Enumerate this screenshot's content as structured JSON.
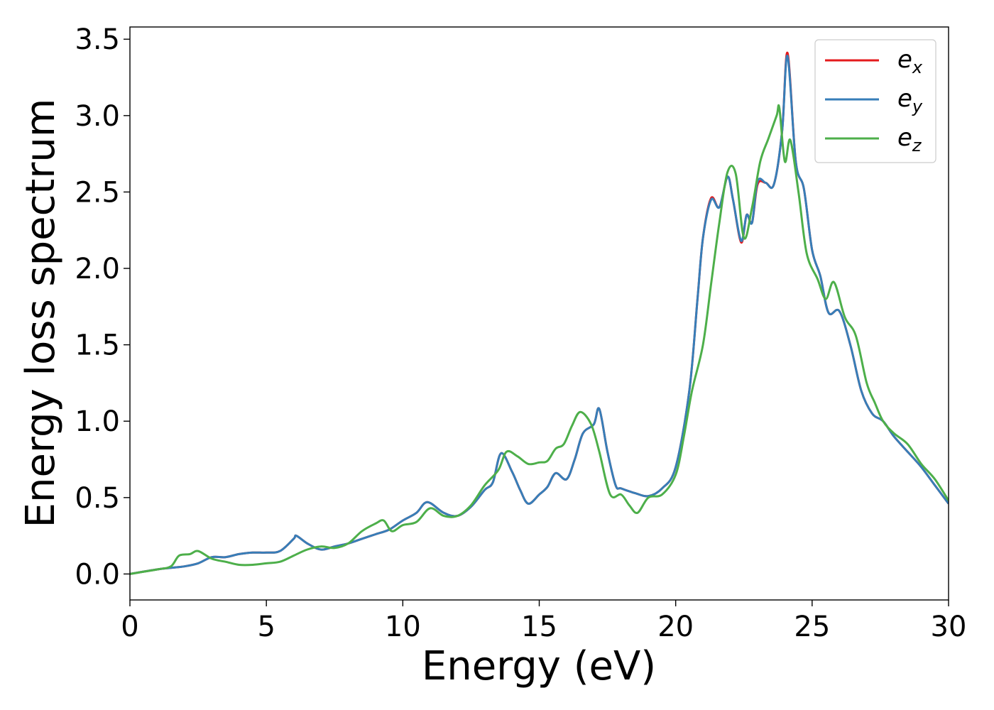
{
  "chart_data": {
    "type": "line",
    "xlabel": "Energy (eV)",
    "ylabel": "Energy loss spectrum",
    "xlim": [
      0,
      30
    ],
    "ylim": [
      -0.17,
      3.58
    ],
    "xticks": [
      "0",
      "5",
      "10",
      "15",
      "20",
      "25",
      "30"
    ],
    "yticks": [
      "0.0",
      "0.5",
      "1.0",
      "1.5",
      "2.0",
      "2.5",
      "3.0",
      "3.5"
    ],
    "grid": false,
    "legend": {
      "position": "top-right"
    },
    "series": [
      {
        "name": "e_x",
        "legend_main": "e",
        "legend_sub": "x",
        "color": "#e41a1c",
        "x": [
          0,
          1,
          1.5,
          2,
          2.5,
          3,
          3.5,
          4,
          4.5,
          5,
          5.5,
          6,
          6.1,
          6.5,
          7,
          7.5,
          8,
          8.5,
          9,
          9.5,
          10,
          10.5,
          10.9,
          11.5,
          12,
          12.5,
          13,
          13.3,
          13.6,
          14,
          14.3,
          14.6,
          15,
          15.3,
          15.6,
          16,
          16.3,
          16.6,
          17,
          17.2,
          17.5,
          17.8,
          18,
          18.5,
          19,
          19.5,
          20,
          20.5,
          20.8,
          21,
          21.3,
          21.6,
          21.9,
          22.1,
          22.4,
          22.6,
          22.8,
          23,
          23.3,
          23.6,
          23.9,
          24.1,
          24.4,
          24.7,
          25,
          25.3,
          25.6,
          26,
          26.4,
          26.8,
          27.2,
          27.6,
          28,
          28.5,
          29,
          29.5,
          30
        ],
        "y": [
          0,
          0.03,
          0.04,
          0.05,
          0.07,
          0.11,
          0.11,
          0.13,
          0.14,
          0.14,
          0.15,
          0.23,
          0.25,
          0.2,
          0.16,
          0.18,
          0.2,
          0.23,
          0.26,
          0.29,
          0.35,
          0.4,
          0.47,
          0.4,
          0.38,
          0.44,
          0.55,
          0.6,
          0.79,
          0.67,
          0.55,
          0.46,
          0.52,
          0.57,
          0.66,
          0.62,
          0.75,
          0.92,
          0.98,
          1.08,
          0.8,
          0.58,
          0.56,
          0.53,
          0.51,
          0.56,
          0.7,
          1.2,
          1.8,
          2.2,
          2.46,
          2.4,
          2.6,
          2.45,
          2.17,
          2.35,
          2.3,
          2.55,
          2.56,
          2.55,
          2.9,
          3.41,
          2.7,
          2.52,
          2.12,
          1.95,
          1.71,
          1.72,
          1.5,
          1.2,
          1.05,
          1.0,
          0.9,
          0.8,
          0.7,
          0.58,
          0.46
        ]
      },
      {
        "name": "e_y",
        "legend_main": "e",
        "legend_sub": "y",
        "color": "#377eb8",
        "x": [
          0,
          1,
          1.5,
          2,
          2.5,
          3,
          3.5,
          4,
          4.5,
          5,
          5.5,
          6,
          6.1,
          6.5,
          7,
          7.5,
          8,
          8.5,
          9,
          9.5,
          10,
          10.5,
          10.9,
          11.5,
          12,
          12.5,
          13,
          13.3,
          13.6,
          14,
          14.3,
          14.6,
          15,
          15.3,
          15.6,
          16,
          16.3,
          16.6,
          17,
          17.2,
          17.5,
          17.8,
          18,
          18.5,
          19,
          19.5,
          20,
          20.5,
          20.8,
          21,
          21.3,
          21.6,
          21.9,
          22.1,
          22.4,
          22.6,
          22.8,
          23,
          23.3,
          23.6,
          23.9,
          24.1,
          24.4,
          24.7,
          25,
          25.3,
          25.6,
          26,
          26.4,
          26.8,
          27.2,
          27.6,
          28,
          28.5,
          29,
          29.5,
          30
        ],
        "y": [
          0,
          0.03,
          0.04,
          0.05,
          0.07,
          0.11,
          0.11,
          0.13,
          0.14,
          0.14,
          0.15,
          0.23,
          0.25,
          0.2,
          0.16,
          0.18,
          0.2,
          0.23,
          0.26,
          0.29,
          0.35,
          0.4,
          0.47,
          0.4,
          0.38,
          0.44,
          0.55,
          0.6,
          0.79,
          0.67,
          0.55,
          0.46,
          0.52,
          0.57,
          0.66,
          0.62,
          0.75,
          0.92,
          0.98,
          1.08,
          0.8,
          0.58,
          0.56,
          0.53,
          0.51,
          0.56,
          0.7,
          1.2,
          1.8,
          2.2,
          2.45,
          2.4,
          2.6,
          2.45,
          2.18,
          2.35,
          2.3,
          2.57,
          2.56,
          2.55,
          2.9,
          3.39,
          2.7,
          2.52,
          2.12,
          1.95,
          1.71,
          1.72,
          1.5,
          1.2,
          1.05,
          1.0,
          0.9,
          0.8,
          0.7,
          0.58,
          0.46
        ]
      },
      {
        "name": "e_z",
        "legend_main": "e",
        "legend_sub": "z",
        "color": "#4daf4a",
        "x": [
          0,
          1,
          1.5,
          1.8,
          2.2,
          2.5,
          3,
          3.5,
          4,
          4.5,
          5,
          5.5,
          6,
          6.5,
          7,
          7.5,
          8,
          8.5,
          9,
          9.3,
          9.6,
          10,
          10.5,
          11,
          11.5,
          12,
          12.5,
          13,
          13.5,
          13.8,
          14.2,
          14.6,
          15,
          15.3,
          15.6,
          15.9,
          16.2,
          16.5,
          16.9,
          17.2,
          17.6,
          18,
          18.3,
          18.6,
          19,
          19.5,
          20,
          20.3,
          20.6,
          21,
          21.3,
          21.6,
          21.9,
          22.2,
          22.5,
          22.8,
          23.1,
          23.4,
          23.7,
          23.8,
          24,
          24.2,
          24.5,
          24.8,
          25.2,
          25.5,
          25.8,
          26.2,
          26.6,
          27,
          27.3,
          27.6,
          28,
          28.5,
          29,
          29.5,
          30
        ],
        "y": [
          0,
          0.03,
          0.05,
          0.12,
          0.13,
          0.15,
          0.1,
          0.08,
          0.06,
          0.06,
          0.07,
          0.08,
          0.12,
          0.16,
          0.18,
          0.17,
          0.2,
          0.28,
          0.33,
          0.35,
          0.28,
          0.32,
          0.34,
          0.43,
          0.38,
          0.38,
          0.45,
          0.58,
          0.68,
          0.8,
          0.77,
          0.72,
          0.73,
          0.74,
          0.82,
          0.85,
          0.97,
          1.06,
          0.98,
          0.8,
          0.52,
          0.52,
          0.45,
          0.4,
          0.5,
          0.52,
          0.65,
          0.9,
          1.2,
          1.5,
          1.9,
          2.3,
          2.63,
          2.62,
          2.2,
          2.4,
          2.7,
          2.85,
          3.0,
          3.05,
          2.7,
          2.84,
          2.5,
          2.1,
          1.93,
          1.8,
          1.91,
          1.68,
          1.56,
          1.25,
          1.12,
          1.0,
          0.92,
          0.85,
          0.72,
          0.62,
          0.48
        ]
      }
    ]
  }
}
